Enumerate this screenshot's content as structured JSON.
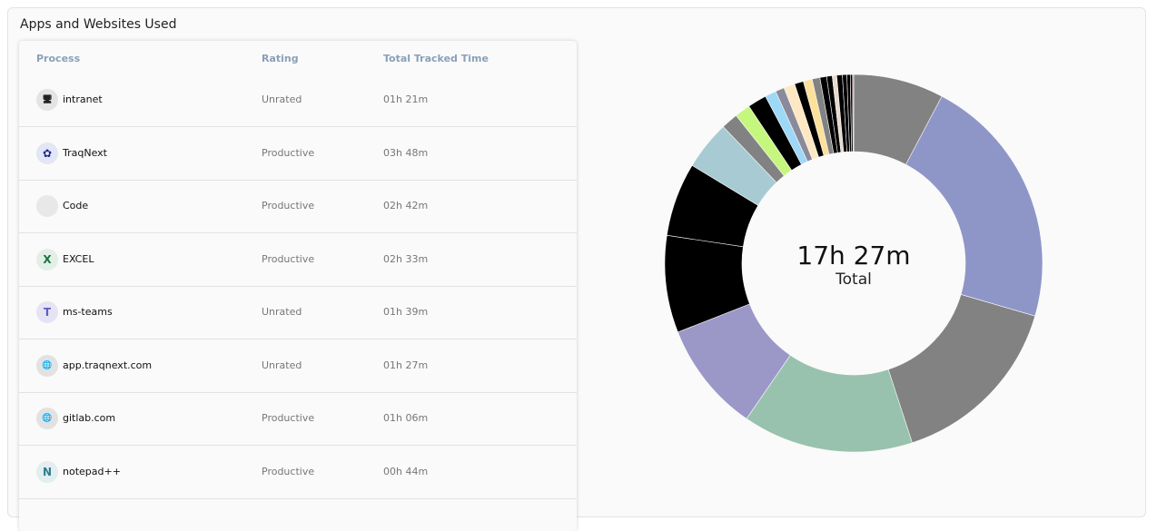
{
  "title": "Apps and Websites Used",
  "columns": [
    "Process",
    "Rating",
    "Total Tracked Time"
  ],
  "rows": [
    {
      "process": "intranet",
      "rating": "Unrated",
      "time": "01h 21m",
      "icon": "monitor-icon"
    },
    {
      "process": "TraqNext",
      "rating": "Productive",
      "time": "03h 48m",
      "icon": "traqnext-logo-icon"
    },
    {
      "process": "Code",
      "rating": "Productive",
      "time": "02h 42m",
      "icon": "code-icon"
    },
    {
      "process": "EXCEL",
      "rating": "Productive",
      "time": "02h 33m",
      "icon": "excel-icon"
    },
    {
      "process": "ms-teams",
      "rating": "Unrated",
      "time": "01h 39m",
      "icon": "teams-icon"
    },
    {
      "process": "app.traqnext.com",
      "rating": "Unrated",
      "time": "01h 27m",
      "icon": "globe-icon"
    },
    {
      "process": "gitlab.com",
      "rating": "Productive",
      "time": "01h 06m",
      "icon": "globe-icon"
    },
    {
      "process": "notepad++",
      "rating": "Productive",
      "time": "00h 44m",
      "icon": "notepad-icon"
    }
  ],
  "donut": {
    "total": "17h 27m",
    "total_label": "Total",
    "slices_minutes": [
      81,
      228,
      162,
      153,
      99,
      87,
      66,
      44,
      15,
      14,
      17,
      10,
      8,
      10,
      8,
      8,
      7,
      6,
      5,
      4,
      5,
      4,
      3,
      2,
      1
    ],
    "colors": [
      "#828282",
      "#8e96c8",
      "#828282",
      "#98c2ad",
      "#9b98c8",
      "#000000",
      "#000000",
      "#a8cbd3",
      "#828282",
      "#c5f77e",
      "#000000",
      "#9ed8f7",
      "#8a8a9a",
      "#fde8c3",
      "#000000",
      "#fde09a",
      "#828282",
      "#000000",
      "#000000",
      "#ead9cb",
      "#000000",
      "#000000",
      "#000000",
      "#000000",
      "#f08080"
    ]
  }
}
